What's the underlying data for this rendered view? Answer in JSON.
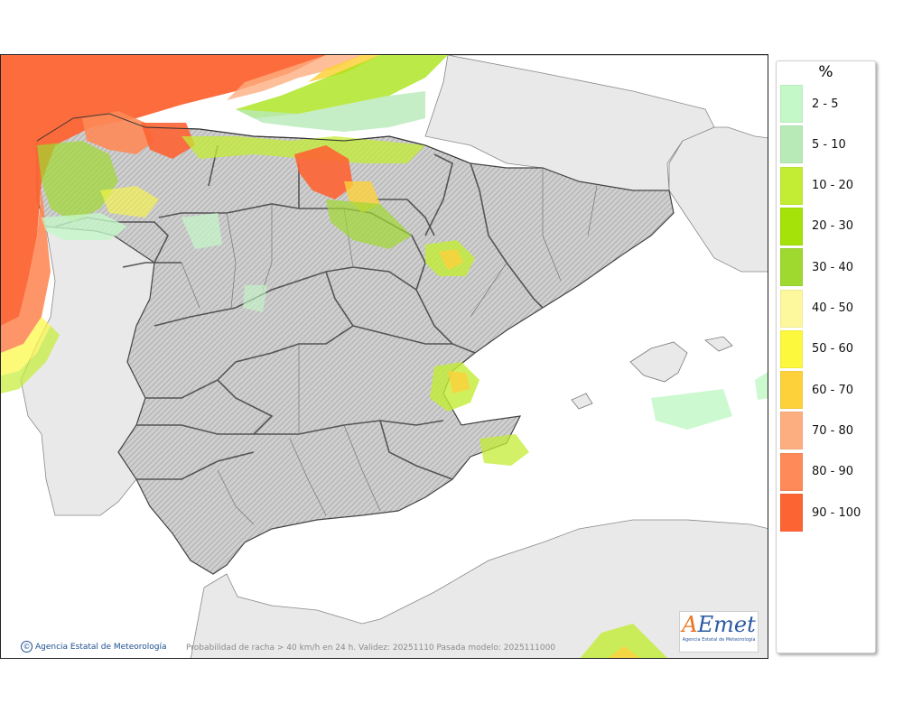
{
  "map": {
    "caption": "Probabilidad de racha > 40 km/h en 24 h. Validez: 20251110 Pasada modelo: 2025111000",
    "credit": "Agencia Estatal de Meteorología",
    "logo": {
      "word_a": "A",
      "word_rest": "Emet",
      "subtitle": "Agencia Estatal de Meteorología"
    }
  },
  "legend": {
    "unit": "%",
    "items": [
      {
        "label": "2 - 5",
        "color": "#c4f8c8"
      },
      {
        "label": "5 - 10",
        "color": "#b8eab8"
      },
      {
        "label": "10 - 20",
        "color": "#c3ec34"
      },
      {
        "label": "20 - 30",
        "color": "#a4e20a"
      },
      {
        "label": "30 - 40",
        "color": "#9fd930"
      },
      {
        "label": "40 - 50",
        "color": "#fdf79e"
      },
      {
        "label": "50 - 60",
        "color": "#fcf83e"
      },
      {
        "label": "60 - 70",
        "color": "#fdd13a"
      },
      {
        "label": "70 - 80",
        "color": "#fdae80"
      },
      {
        "label": "80 - 90",
        "color": "#fd8a58"
      },
      {
        "label": "90 - 100",
        "color": "#fd6433"
      }
    ]
  },
  "colors": {
    "sea": "#ffffff",
    "land_outside": "#e9e9e9",
    "spain_land": "#c8c8c8"
  }
}
